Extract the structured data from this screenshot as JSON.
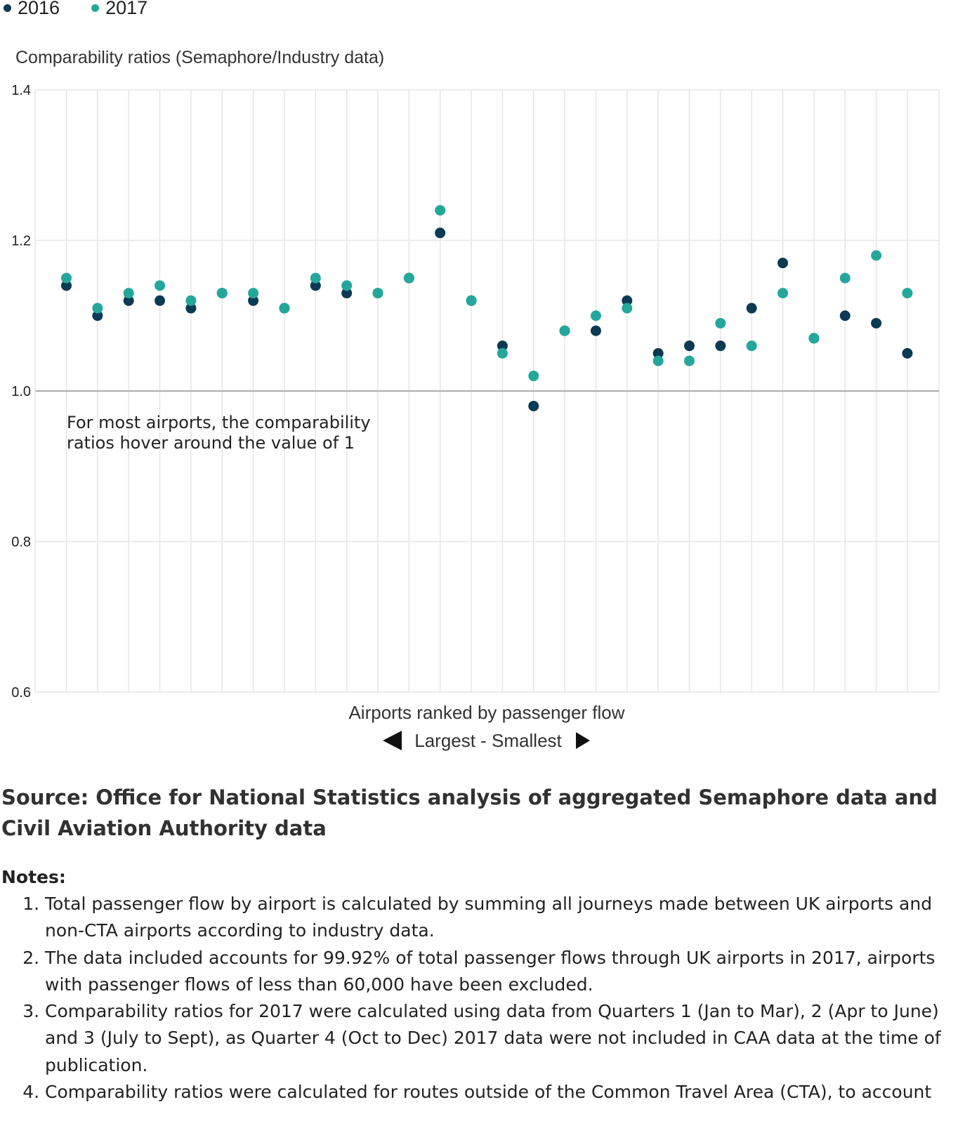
{
  "legend": [
    {
      "label": "2016",
      "color": "#0b3a54"
    },
    {
      "label": "2017",
      "color": "#24a79b"
    }
  ],
  "chart_data": {
    "type": "scatter",
    "ylabel": "Comparability ratios (Semaphore/Industry data)",
    "xlabel": "Airports ranked by passenger flow",
    "xlabel_sub": "Largest - Smallest",
    "ylim": [
      0.6,
      1.4
    ],
    "y_ticks": [
      "1.4",
      "1.2",
      "1.0",
      "0.8",
      "0.6"
    ],
    "reference_line": 1.0,
    "grid": true,
    "legend_position": "top-left",
    "annotation": [
      "For most airports, the comparability",
      "ratios hover around the value of 1"
    ],
    "x": [
      1,
      2,
      3,
      4,
      5,
      6,
      7,
      8,
      9,
      10,
      11,
      12,
      13,
      14,
      15,
      16,
      17,
      18,
      19,
      20,
      21,
      22,
      23,
      24,
      25,
      26,
      27,
      28
    ],
    "series": [
      {
        "name": "2016",
        "color": "#0b3a54",
        "values": [
          1.14,
          1.1,
          1.12,
          1.12,
          1.11,
          1.13,
          1.12,
          1.11,
          1.14,
          1.13,
          1.13,
          1.15,
          1.21,
          1.12,
          1.06,
          0.98,
          1.08,
          1.08,
          1.12,
          1.05,
          1.06,
          1.06,
          1.11,
          1.17,
          1.07,
          1.1,
          1.09,
          1.05
        ]
      },
      {
        "name": "2017",
        "color": "#24a79b",
        "values": [
          1.15,
          1.11,
          1.13,
          1.14,
          1.12,
          1.13,
          1.13,
          1.11,
          1.15,
          1.14,
          1.13,
          1.15,
          1.24,
          1.12,
          1.05,
          1.02,
          1.08,
          1.1,
          1.11,
          1.04,
          1.04,
          1.09,
          1.06,
          1.13,
          1.07,
          1.15,
          1.18,
          1.13
        ]
      }
    ]
  },
  "source": "Source: Office for National Statistics analysis of aggregated Semaphore data and Civil Aviation Authority data",
  "notes": {
    "title": "Notes:",
    "items": [
      "Total passenger flow by airport is calculated by summing all journeys made between UK airports and non-CTA airports according to industry data.",
      "The data included accounts for 99.92% of total passenger flows through UK airports in 2017, airports with passenger flows of less than 60,000 have been excluded.",
      "Comparability ratios for 2017 were calculated using data from Quarters 1 (Jan to Mar), 2 (Apr to June) and 3 (July to Sept), as Quarter 4 (Oct to Dec) 2017 data were not included in CAA data at the time of publication.",
      "Comparability ratios were calculated for routes outside of the Common Travel Area (CTA), to account"
    ]
  }
}
